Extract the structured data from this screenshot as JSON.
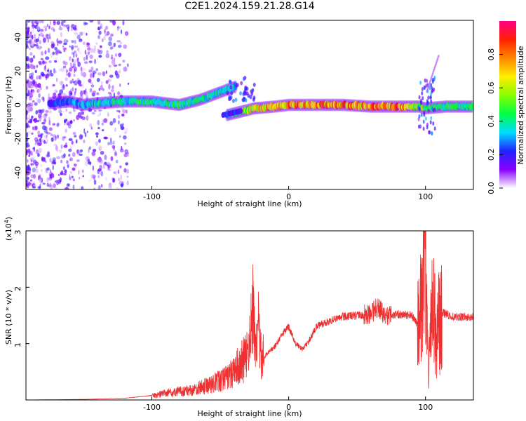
{
  "title": "C2E1.2024.159.21.28.G14",
  "chart_data": [
    {
      "type": "heatmap",
      "xlabel": "Height of straight line (km)",
      "ylabel": "Frequency (Hz)",
      "xlim": [
        -192,
        135
      ],
      "ylim": [
        -50,
        50
      ],
      "xticks": [
        -100,
        0,
        100
      ],
      "yticks": [
        -40,
        -20,
        0,
        20,
        40
      ],
      "colorbar": {
        "label": "Normalized spectral amplitude",
        "range": [
          0,
          1
        ],
        "ticks": [
          0.0,
          0.2,
          0.4,
          0.6,
          0.8
        ],
        "tick_labels": [
          "0.0",
          "0.2",
          "0.4",
          "0.6",
          "0.8"
        ],
        "colors": [
          "#ffffff",
          "#8800ff",
          "#2222ff",
          "#00ddff",
          "#00ff44",
          "#88ff00",
          "#ffee00",
          "#ff8800",
          "#ff2200",
          "#ff0088"
        ]
      },
      "ridge": [
        {
          "x": -175,
          "f": 1,
          "amp": 0.22
        },
        {
          "x": -160,
          "f": 2,
          "amp": 0.3
        },
        {
          "x": -150,
          "f": 0,
          "amp": 0.35
        },
        {
          "x": -140,
          "f": 1,
          "amp": 0.38
        },
        {
          "x": -120,
          "f": 2,
          "amp": 0.42
        },
        {
          "x": -100,
          "f": 2,
          "amp": 0.45
        },
        {
          "x": -80,
          "f": 0,
          "amp": 0.45
        },
        {
          "x": -65,
          "f": 3,
          "amp": 0.42
        },
        {
          "x": -55,
          "f": 6,
          "amp": 0.42
        },
        {
          "x": -45,
          "f": 9,
          "amp": 0.38
        },
        {
          "x": -38,
          "f": 11,
          "amp": 0.35
        },
        {
          "x": -45,
          "f": -6,
          "amp": 0.3
        },
        {
          "x": -35,
          "f": -4,
          "amp": 0.55
        },
        {
          "x": -25,
          "f": -2,
          "amp": 0.7
        },
        {
          "x": -10,
          "f": -1,
          "amp": 0.78
        },
        {
          "x": 0,
          "f": 0,
          "amp": 0.82
        },
        {
          "x": 20,
          "f": 0,
          "amp": 0.85
        },
        {
          "x": 40,
          "f": 0,
          "amp": 0.82
        },
        {
          "x": 60,
          "f": -1,
          "amp": 0.85
        },
        {
          "x": 80,
          "f": -1,
          "amp": 0.88
        },
        {
          "x": 95,
          "f": -1,
          "amp": 0.6
        },
        {
          "x": 100,
          "f": -2,
          "amp": 0.55
        },
        {
          "x": 115,
          "f": -1,
          "amp": 0.45
        },
        {
          "x": 135,
          "f": -1,
          "amp": 0.45
        }
      ]
    },
    {
      "type": "line",
      "xlabel": "Height of straight line (km)",
      "ylabel": "SNR (10 * v/v)",
      "y_multiplier": "(x10^4)",
      "xlim": [
        -192,
        135
      ],
      "ylim": [
        0,
        30000
      ],
      "xticks": [
        -100,
        0,
        100
      ],
      "yticks": [
        10000,
        20000,
        30000
      ],
      "ytick_labels": [
        "1",
        "2",
        "3"
      ],
      "color": "#ee3030",
      "series": [
        {
          "x": [
            -192,
            -150,
            -120,
            -100,
            -90,
            -80,
            -70,
            -60,
            -50,
            -45,
            -40,
            -35,
            -30,
            -28,
            -26,
            -24,
            -22,
            -20,
            -18,
            -15,
            -10,
            -5,
            0,
            5,
            10,
            15,
            20,
            30,
            40,
            50,
            60,
            65,
            70,
            80,
            90,
            95,
            98,
            100,
            102,
            105,
            108,
            112,
            120,
            135
          ],
          "y": [
            0,
            100,
            300,
            800,
            1200,
            1500,
            1800,
            2500,
            3500,
            4000,
            5000,
            6500,
            8000,
            12000,
            16000,
            9000,
            13000,
            8000,
            7500,
            8500,
            9500,
            11500,
            13000,
            10000,
            9000,
            10500,
            13000,
            14000,
            14800,
            15000,
            15200,
            16500,
            15000,
            15200,
            15000,
            13000,
            20000,
            29000,
            5000,
            17000,
            12000,
            15500,
            14800,
            14700
          ]
        }
      ]
    }
  ]
}
